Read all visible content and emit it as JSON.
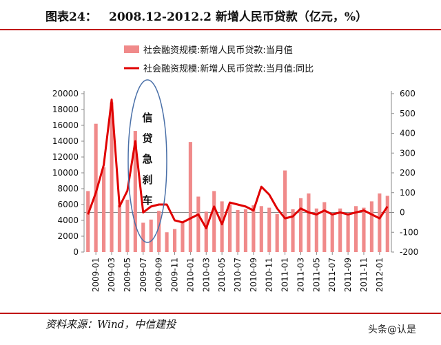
{
  "header": {
    "figure_label": "图表24：",
    "title": "2008.12-2012.2 新增人民币贷款（亿元，%）"
  },
  "footer": {
    "source": "资料来源：Wind，中信建投",
    "watermark": "头条@认是"
  },
  "colors": {
    "bar": "#f08a8a",
    "line": "#e00000",
    "rule": "#c00000",
    "annotation": "#4a70a8"
  },
  "chart_data": {
    "type": "bar",
    "title": "",
    "legend": {
      "placement": "top",
      "entries": [
        {
          "label": "社会融资规模:新增人民币贷款:当月值",
          "kind": "bar"
        },
        {
          "label": "社会融资规模:新增人民币贷款:当月值:同比",
          "kind": "line"
        }
      ]
    },
    "y_left": {
      "min": 0,
      "max": 20000,
      "ticks": [
        "0",
        "2000",
        "4000",
        "6000",
        "8000",
        "10000",
        "12000",
        "14000",
        "16000",
        "18000",
        "20000"
      ]
    },
    "y_right": {
      "min": -200,
      "max": 600,
      "ticks": [
        "-200",
        "-100",
        "0",
        "100",
        "200",
        "300",
        "400",
        "500",
        "600"
      ]
    },
    "x_tick_labels": [
      "2009-01",
      "2009-03",
      "2009-05",
      "2009-07",
      "2009-09",
      "2009-11",
      "2010-01",
      "2010-03",
      "2010-05",
      "2010-07",
      "2010-09",
      "2010-11",
      "2011-01",
      "2011-03",
      "2011-05",
      "2011-07",
      "2011-09",
      "2011-11",
      "2012-01"
    ],
    "categories": [
      "2008-12",
      "2009-01",
      "2009-02",
      "2009-03",
      "2009-04",
      "2009-05",
      "2009-06",
      "2009-07",
      "2009-08",
      "2009-09",
      "2009-10",
      "2009-11",
      "2009-12",
      "2010-01",
      "2010-02",
      "2010-03",
      "2010-04",
      "2010-05",
      "2010-06",
      "2010-07",
      "2010-08",
      "2010-09",
      "2010-10",
      "2010-11",
      "2010-12",
      "2011-01",
      "2011-02",
      "2011-03",
      "2011-04",
      "2011-05",
      "2011-06",
      "2011-07",
      "2011-08",
      "2011-09",
      "2011-10",
      "2011-11",
      "2011-12",
      "2012-01",
      "2012-02"
    ],
    "series": [
      {
        "name": "社会融资规模:新增人民币贷款:当月值",
        "axis": "left",
        "type": "bar",
        "values": [
          7700,
          16200,
          10700,
          18900,
          5900,
          6600,
          15300,
          3700,
          4100,
          5200,
          2500,
          2900,
          3800,
          13900,
          7000,
          5100,
          7700,
          6400,
          6000,
          5300,
          5400,
          5900,
          5800,
          5600,
          4800,
          10300,
          5400,
          6800,
          7400,
          5500,
          6300,
          4900,
          5500,
          4700,
          5800,
          5600,
          6400,
          7400,
          7100
        ]
      },
      {
        "name": "社会融资规模:新增人民币贷款:当月值:同比",
        "axis": "right",
        "type": "line",
        "values": [
          -10,
          100,
          240,
          570,
          30,
          110,
          360,
          0,
          30,
          40,
          40,
          -40,
          -50,
          -30,
          -10,
          -80,
          30,
          -60,
          50,
          40,
          30,
          10,
          130,
          90,
          20,
          -30,
          -20,
          20,
          0,
          -10,
          10,
          -10,
          0,
          -10,
          0,
          10,
          -10,
          -30,
          30
        ]
      }
    ],
    "annotation": {
      "text": "信贷急刹车",
      "shape": "ellipse"
    },
    "grid": false
  }
}
